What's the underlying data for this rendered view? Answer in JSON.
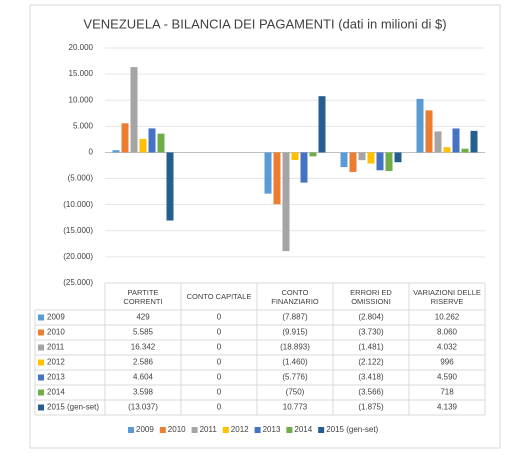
{
  "chart_data": {
    "type": "bar",
    "title": "VENEZUELA - BILANCIA DEI PAGAMENTI (dati in milioni di $)",
    "categories": [
      "PARTITE CORRENTI",
      "CONTO CAPITALE",
      "CONTO FINANZIARIO",
      "ERRORI ED OMISSIONI",
      "VARIAZIONI DELLE RISERVE"
    ],
    "series": [
      {
        "name": "2009",
        "color": "#5b9bd5",
        "values": [
          429,
          0,
          -7887,
          -2804,
          10262
        ],
        "value_labels": [
          "429",
          "0",
          "(7.887)",
          "(2.804)",
          "10.262"
        ]
      },
      {
        "name": "2010",
        "color": "#ed7d31",
        "values": [
          5585,
          0,
          -9915,
          -3730,
          8060
        ],
        "value_labels": [
          "5.585",
          "0",
          "(9.915)",
          "(3.730)",
          "8.060"
        ]
      },
      {
        "name": "2011",
        "color": "#a5a5a5",
        "values": [
          16342,
          0,
          -18893,
          -1481,
          4032
        ],
        "value_labels": [
          "16.342",
          "0",
          "(18.893)",
          "(1.481)",
          "4.032"
        ]
      },
      {
        "name": "2012",
        "color": "#ffc000",
        "values": [
          2586,
          0,
          -1460,
          -2122,
          996
        ],
        "value_labels": [
          "2.586",
          "0",
          "(1.460)",
          "(2.122)",
          "996"
        ]
      },
      {
        "name": "2013",
        "color": "#4472c4",
        "values": [
          4604,
          0,
          -5776,
          -3418,
          4590
        ],
        "value_labels": [
          "4.604",
          "0",
          "(5.776)",
          "(3.418)",
          "4.590"
        ]
      },
      {
        "name": "2014",
        "color": "#70ad47",
        "values": [
          3598,
          0,
          -750,
          -3566,
          718
        ],
        "value_labels": [
          "3.598",
          "0",
          "(750)",
          "(3.566)",
          "718"
        ]
      },
      {
        "name": "2015 (gen-set)",
        "color": "#255e91",
        "values": [
          -13037,
          0,
          10773,
          -1875,
          4139
        ],
        "value_labels": [
          "(13.037)",
          "0",
          "10.773",
          "(1.875)",
          "4.139"
        ]
      }
    ],
    "ylim": [
      -25000,
      20000
    ],
    "yticks": [
      {
        "value": 20000,
        "label": "20.000"
      },
      {
        "value": 15000,
        "label": "15.000"
      },
      {
        "value": 10000,
        "label": "10.000"
      },
      {
        "value": 5000,
        "label": "5.000"
      },
      0,
      {
        "value": -5000,
        "label": "(5.000)"
      },
      {
        "value": -10000,
        "label": "(10.000)"
      },
      {
        "value": -15000,
        "label": "(15.000)"
      },
      {
        "value": -20000,
        "label": "(20.000)"
      },
      {
        "value": -25000,
        "label": "(25.000)"
      }
    ],
    "grid": true
  }
}
